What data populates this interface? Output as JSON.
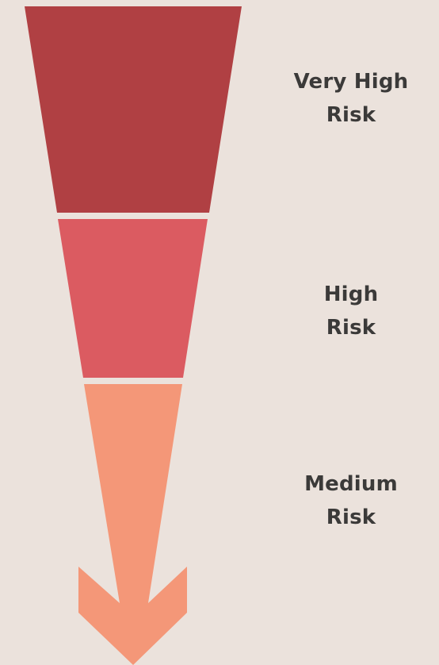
{
  "levels": [
    {
      "line1": "Very High",
      "line2": "Risk",
      "color": "#b04043"
    },
    {
      "line1": "High",
      "line2": "Risk",
      "color": "#db5b61"
    },
    {
      "line1": "Medium",
      "line2": "Risk",
      "color": "#f49778"
    }
  ],
  "background_color": "#ebe2dc",
  "text_color": "#3b3a39"
}
